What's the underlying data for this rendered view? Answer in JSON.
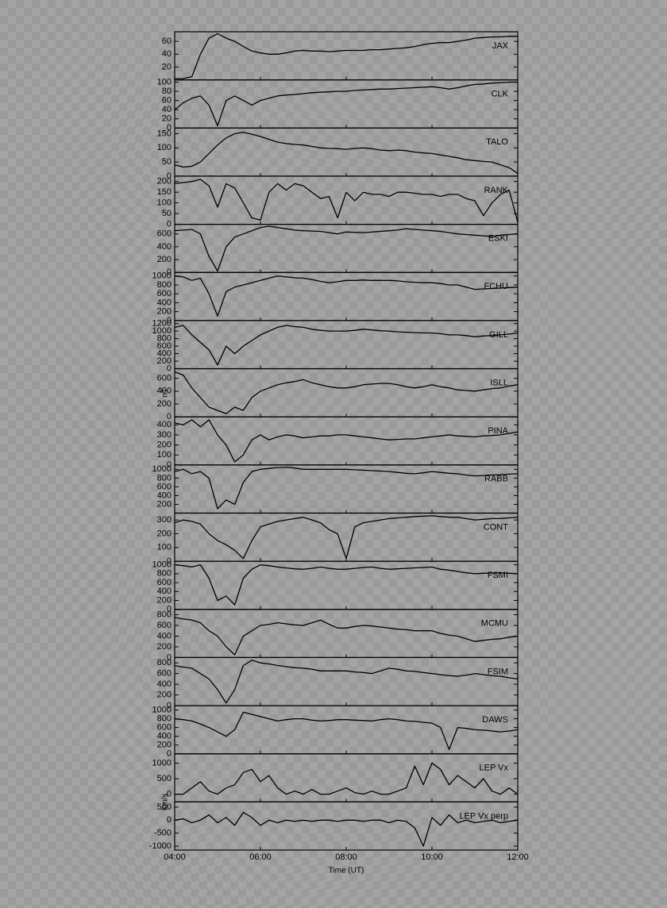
{
  "chart_data": {
    "type": "line",
    "x_label": "Time (UT)",
    "y_labels": [
      "nT",
      "km/s"
    ],
    "xlim": [
      4,
      12
    ],
    "xticks": [
      {
        "value": 4,
        "label": "04:00"
      },
      {
        "value": 6,
        "label": "06:00"
      },
      {
        "value": 8,
        "label": "08:00"
      },
      {
        "value": 10,
        "label": "10:00"
      },
      {
        "value": 12,
        "label": "12:00"
      }
    ],
    "x": [
      4,
      4.2,
      4.4,
      4.6,
      4.8,
      5,
      5.2,
      5.4,
      5.6,
      5.8,
      6,
      6.2,
      6.4,
      6.6,
      6.8,
      7,
      7.2,
      7.4,
      7.6,
      7.8,
      8,
      8.2,
      8.4,
      8.6,
      8.8,
      9,
      9.2,
      9.4,
      9.6,
      9.8,
      10,
      10.2,
      10.4,
      10.6,
      10.8,
      11,
      11.2,
      11.4,
      11.6,
      11.8,
      12
    ],
    "color": "#000000",
    "panels": [
      {
        "name": "JAX",
        "ylim": [
          0,
          75
        ],
        "yticks": [
          20,
          40,
          60
        ],
        "values": [
          2,
          2,
          5,
          40,
          65,
          72,
          65,
          60,
          52,
          45,
          42,
          40,
          40,
          42,
          45,
          46,
          45,
          45,
          44,
          45,
          46,
          46,
          46,
          47,
          47,
          48,
          49,
          50,
          52,
          55,
          57,
          58,
          58,
          60,
          62,
          65,
          66,
          67,
          67,
          68,
          68
        ]
      },
      {
        "name": "CLK",
        "ylim": [
          0,
          105
        ],
        "yticks": [
          0,
          20,
          40,
          60,
          80,
          100
        ],
        "values": [
          40,
          55,
          65,
          70,
          50,
          5,
          60,
          70,
          60,
          50,
          60,
          65,
          70,
          72,
          73,
          75,
          77,
          78,
          79,
          80,
          80,
          82,
          83,
          84,
          85,
          85,
          86,
          87,
          88,
          89,
          90,
          88,
          85,
          88,
          92,
          95,
          96,
          98,
          99,
          100,
          100
        ]
      },
      {
        "name": "TALO",
        "ylim": [
          0,
          170
        ],
        "yticks": [
          0,
          50,
          100,
          150
        ],
        "values": [
          40,
          32,
          35,
          50,
          80,
          110,
          135,
          150,
          155,
          148,
          140,
          130,
          120,
          115,
          112,
          110,
          105,
          100,
          98,
          97,
          95,
          98,
          100,
          97,
          92,
          90,
          92,
          90,
          85,
          82,
          80,
          75,
          70,
          65,
          58,
          55,
          52,
          50,
          40,
          30,
          10
        ]
      },
      {
        "name": "RANK",
        "ylim": [
          0,
          225
        ],
        "yticks": [
          0,
          50,
          100,
          150,
          200
        ],
        "values": [
          190,
          195,
          200,
          210,
          180,
          80,
          190,
          170,
          100,
          30,
          20,
          150,
          190,
          160,
          190,
          180,
          150,
          120,
          130,
          30,
          150,
          110,
          150,
          140,
          140,
          130,
          150,
          150,
          145,
          140,
          140,
          130,
          140,
          140,
          120,
          110,
          40,
          100,
          140,
          160,
          10
        ]
      },
      {
        "name": "ESKI",
        "ylim": [
          0,
          750
        ],
        "yticks": [
          0,
          200,
          400,
          600
        ],
        "values": [
          650,
          660,
          670,
          600,
          250,
          20,
          400,
          550,
          600,
          650,
          700,
          720,
          700,
          680,
          660,
          650,
          645,
          640,
          620,
          600,
          630,
          625,
          620,
          630,
          640,
          650,
          660,
          680,
          670,
          660,
          650,
          640,
          620,
          600,
          590,
          580,
          570,
          560,
          580,
          590,
          600
        ]
      },
      {
        "name": "FCHU",
        "ylim": [
          0,
          1080
        ],
        "yticks": [
          0,
          200,
          400,
          600,
          800,
          1000
        ],
        "values": [
          1000,
          980,
          900,
          950,
          600,
          100,
          650,
          750,
          800,
          850,
          900,
          950,
          1000,
          980,
          960,
          950,
          920,
          880,
          850,
          870,
          900,
          900,
          910,
          900,
          900,
          900,
          890,
          870,
          860,
          850,
          850,
          830,
          800,
          800,
          750,
          700,
          710,
          720,
          730,
          740,
          750
        ]
      },
      {
        "name": "GILL",
        "ylim": [
          0,
          1280
        ],
        "yticks": [
          0,
          200,
          400,
          600,
          800,
          1000,
          1200
        ],
        "values": [
          1100,
          1150,
          900,
          700,
          500,
          100,
          600,
          400,
          600,
          750,
          900,
          1000,
          1100,
          1150,
          1120,
          1100,
          1050,
          1020,
          1000,
          1000,
          1000,
          1020,
          1050,
          1030,
          1010,
          1000,
          980,
          970,
          960,
          950,
          950,
          930,
          900,
          900,
          880,
          850,
          870,
          880,
          900,
          920,
          950
        ]
      },
      {
        "name": "ISLL",
        "ylim": [
          0,
          750
        ],
        "yticks": [
          0,
          200,
          400,
          600
        ],
        "values": [
          700,
          650,
          450,
          300,
          150,
          100,
          50,
          150,
          100,
          300,
          400,
          450,
          500,
          530,
          550,
          580,
          530,
          500,
          470,
          450,
          450,
          470,
          500,
          510,
          520,
          520,
          500,
          470,
          450,
          470,
          500,
          470,
          450,
          420,
          410,
          400,
          420,
          440,
          450,
          480,
          500
        ]
      },
      {
        "name": "PINA",
        "ylim": [
          0,
          480
        ],
        "yticks": [
          0,
          100,
          200,
          300,
          400
        ],
        "values": [
          420,
          400,
          450,
          380,
          450,
          300,
          200,
          30,
          100,
          250,
          300,
          250,
          280,
          300,
          290,
          270,
          280,
          290,
          290,
          300,
          300,
          290,
          280,
          270,
          260,
          250,
          255,
          260,
          260,
          270,
          280,
          290,
          300,
          290,
          285,
          280,
          290,
          295,
          300,
          315,
          330
        ]
      },
      {
        "name": "RABB",
        "ylim": [
          0,
          1100
        ],
        "yticks": [
          200,
          400,
          600,
          800,
          1000
        ],
        "values": [
          950,
          1000,
          900,
          950,
          800,
          100,
          300,
          200,
          700,
          950,
          1000,
          1020,
          1040,
          1050,
          1030,
          1000,
          1000,
          1000,
          1000,
          1000,
          1000,
          990,
          980,
          970,
          960,
          950,
          930,
          910,
          900,
          920,
          950,
          930,
          910,
          900,
          870,
          850,
          860,
          870,
          880,
          890,
          900
        ]
      },
      {
        "name": "CONT",
        "ylim": [
          0,
          350
        ],
        "yticks": [
          0,
          100,
          200,
          300
        ],
        "values": [
          280,
          300,
          290,
          270,
          200,
          150,
          120,
          80,
          20,
          150,
          250,
          270,
          290,
          300,
          310,
          320,
          300,
          280,
          230,
          200,
          20,
          250,
          280,
          290,
          300,
          310,
          315,
          320,
          325,
          328,
          330,
          325,
          320,
          320,
          310,
          300,
          305,
          310,
          310,
          315,
          320
        ]
      },
      {
        "name": "FSMI",
        "ylim": [
          0,
          1080
        ],
        "yticks": [
          0,
          200,
          400,
          600,
          800,
          1000
        ],
        "values": [
          1000,
          980,
          950,
          1000,
          700,
          200,
          300,
          100,
          700,
          900,
          1000,
          980,
          950,
          930,
          910,
          900,
          920,
          950,
          920,
          900,
          900,
          920,
          940,
          950,
          920,
          900,
          910,
          920,
          930,
          940,
          950,
          900,
          880,
          850,
          820,
          800,
          810,
          815,
          820,
          810,
          800
        ]
      },
      {
        "name": "MCMU",
        "ylim": [
          0,
          900
        ],
        "yticks": [
          0,
          200,
          400,
          600,
          800
        ],
        "values": [
          750,
          720,
          700,
          650,
          500,
          400,
          200,
          50,
          400,
          500,
          600,
          620,
          650,
          630,
          610,
          600,
          650,
          700,
          620,
          550,
          550,
          580,
          600,
          590,
          570,
          550,
          530,
          520,
          500,
          500,
          500,
          450,
          420,
          400,
          350,
          300,
          320,
          340,
          350,
          380,
          400
        ]
      },
      {
        "name": "FSIM",
        "ylim": [
          0,
          900
        ],
        "yticks": [
          0,
          200,
          400,
          600,
          800
        ],
        "values": [
          750,
          720,
          700,
          600,
          500,
          300,
          50,
          300,
          750,
          850,
          800,
          780,
          750,
          730,
          710,
          700,
          680,
          650,
          650,
          650,
          650,
          630,
          620,
          600,
          650,
          700,
          680,
          650,
          640,
          620,
          600,
          580,
          560,
          550,
          570,
          600,
          580,
          560,
          550,
          520,
          500
        ]
      },
      {
        "name": "DAWS",
        "ylim": [
          0,
          1100
        ],
        "yticks": [
          0,
          200,
          400,
          600,
          800,
          1000
        ],
        "values": [
          800,
          780,
          750,
          680,
          600,
          500,
          400,
          550,
          950,
          900,
          850,
          800,
          750,
          780,
          800,
          800,
          770,
          750,
          760,
          780,
          780,
          770,
          760,
          750,
          780,
          800,
          780,
          750,
          740,
          720,
          700,
          600,
          100,
          600,
          580,
          550,
          540,
          520,
          500,
          520,
          550
        ]
      },
      {
        "name": "LEP Vx",
        "ylim": [
          -250,
          1300
        ],
        "yticks": [
          0,
          500,
          1000
        ],
        "values": [
          0,
          0,
          200,
          400,
          100,
          0,
          200,
          300,
          700,
          800,
          400,
          600,
          200,
          0,
          100,
          0,
          150,
          0,
          0,
          100,
          200,
          50,
          0,
          100,
          0,
          0,
          100,
          200,
          900,
          300,
          1000,
          800,
          300,
          600,
          400,
          200,
          500,
          100,
          0,
          200,
          0
        ]
      },
      {
        "name": "LEP Vx perp",
        "ylim": [
          -1150,
          700
        ],
        "yticks": [
          -1000,
          -500,
          0,
          500
        ],
        "values": [
          0,
          50,
          -100,
          0,
          200,
          -100,
          100,
          -200,
          300,
          100,
          -200,
          0,
          -100,
          0,
          -50,
          0,
          -50,
          0,
          0,
          -50,
          0,
          0,
          -50,
          0,
          0,
          -100,
          0,
          -50,
          -300,
          -1000,
          100,
          -200,
          200,
          -100,
          0,
          -100,
          -50,
          0,
          -100,
          -50,
          0
        ]
      }
    ]
  }
}
